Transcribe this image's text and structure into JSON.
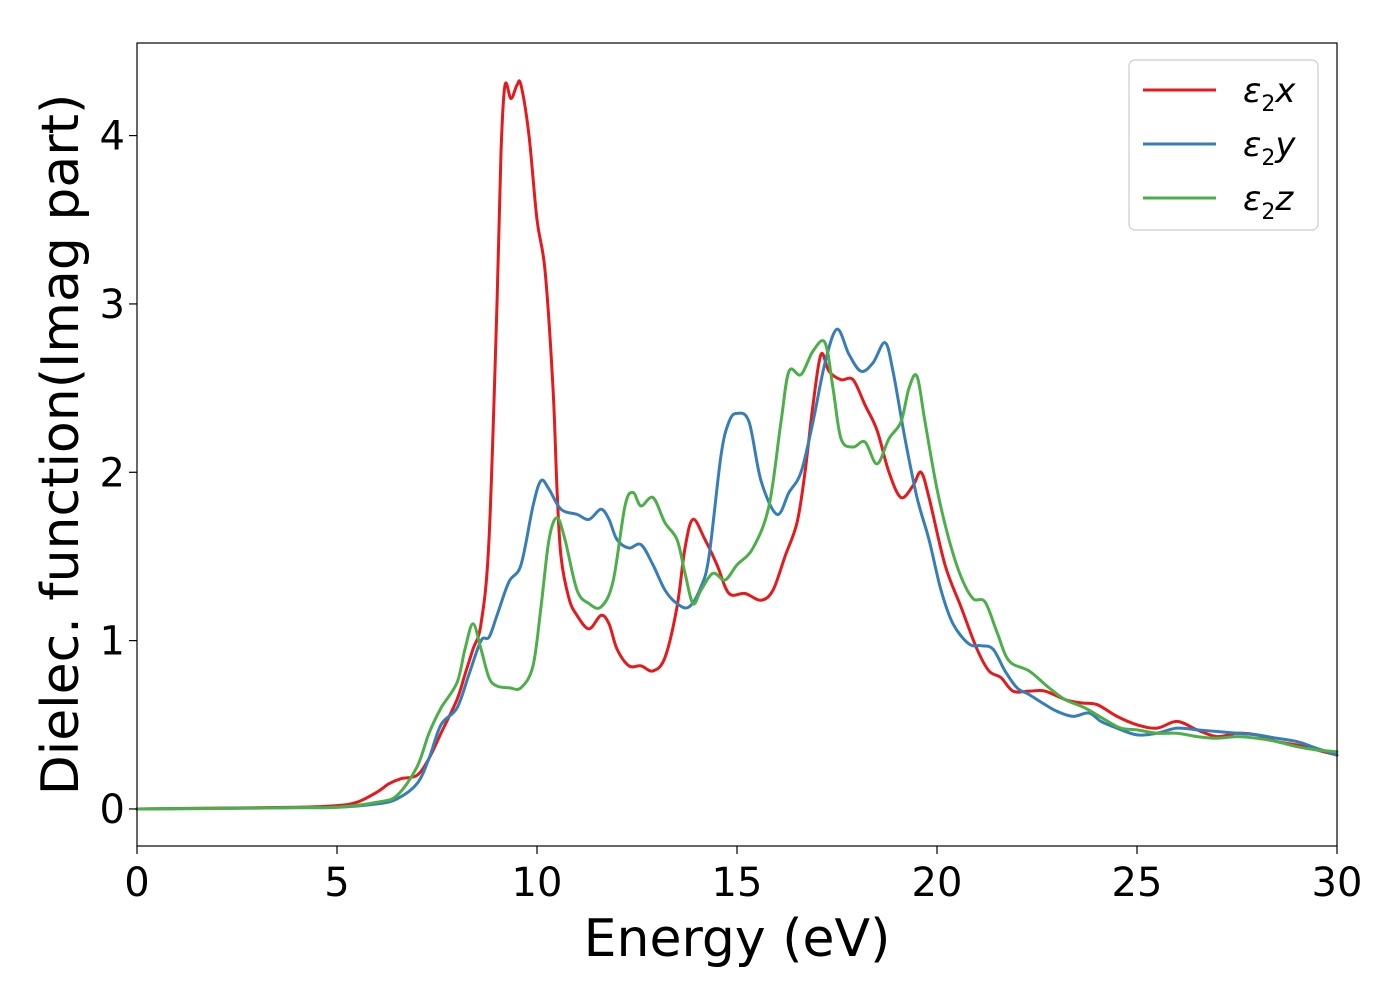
{
  "chart_data": {
    "type": "line",
    "xlabel": "Energy (eV)",
    "ylabel": "Dielec. function(Imag part)",
    "xlim": [
      0,
      30
    ],
    "ylim": [
      -0.22,
      4.55
    ],
    "xticks": [
      "0",
      "5",
      "10",
      "15",
      "20",
      "25",
      "30"
    ],
    "yticks": [
      "0",
      "1",
      "2",
      "3",
      "4"
    ],
    "grid": false,
    "legend_position": "top-right",
    "series": [
      {
        "name": "ε2x",
        "legend_base": "ε",
        "legend_sub": "2",
        "legend_var": "x",
        "color": "#e41a1c",
        "points": [
          [
            0,
            0
          ],
          [
            2,
            0.005
          ],
          [
            4,
            0.01
          ],
          [
            5,
            0.02
          ],
          [
            5.5,
            0.04
          ],
          [
            6,
            0.1
          ],
          [
            6.3,
            0.15
          ],
          [
            6.6,
            0.18
          ],
          [
            7,
            0.2
          ],
          [
            7.3,
            0.3
          ],
          [
            7.6,
            0.45
          ],
          [
            8,
            0.65
          ],
          [
            8.2,
            0.8
          ],
          [
            8.4,
            0.95
          ],
          [
            8.6,
            1.1
          ],
          [
            8.8,
            1.6
          ],
          [
            9,
            3.0
          ],
          [
            9.1,
            3.9
          ],
          [
            9.2,
            4.3
          ],
          [
            9.35,
            4.22
          ],
          [
            9.5,
            4.3
          ],
          [
            9.6,
            4.3
          ],
          [
            9.8,
            4.0
          ],
          [
            10,
            3.5
          ],
          [
            10.2,
            3.2
          ],
          [
            10.4,
            2.5
          ],
          [
            10.5,
            1.9
          ],
          [
            10.6,
            1.5
          ],
          [
            10.8,
            1.25
          ],
          [
            11,
            1.15
          ],
          [
            11.3,
            1.07
          ],
          [
            11.6,
            1.15
          ],
          [
            11.8,
            1.1
          ],
          [
            12,
            0.95
          ],
          [
            12.3,
            0.85
          ],
          [
            12.6,
            0.85
          ],
          [
            12.9,
            0.82
          ],
          [
            13.2,
            0.9
          ],
          [
            13.5,
            1.2
          ],
          [
            13.7,
            1.55
          ],
          [
            13.9,
            1.72
          ],
          [
            14.2,
            1.6
          ],
          [
            14.5,
            1.45
          ],
          [
            14.8,
            1.28
          ],
          [
            15.2,
            1.28
          ],
          [
            15.6,
            1.24
          ],
          [
            15.9,
            1.3
          ],
          [
            16.2,
            1.5
          ],
          [
            16.5,
            1.7
          ],
          [
            16.7,
            2.0
          ],
          [
            16.9,
            2.4
          ],
          [
            17.1,
            2.7
          ],
          [
            17.3,
            2.6
          ],
          [
            17.6,
            2.55
          ],
          [
            17.9,
            2.55
          ],
          [
            18.2,
            2.4
          ],
          [
            18.5,
            2.25
          ],
          [
            18.8,
            2.0
          ],
          [
            19.1,
            1.85
          ],
          [
            19.4,
            1.92
          ],
          [
            19.6,
            2.0
          ],
          [
            19.8,
            1.85
          ],
          [
            20.2,
            1.45
          ],
          [
            20.6,
            1.2
          ],
          [
            21,
            0.95
          ],
          [
            21.3,
            0.82
          ],
          [
            21.6,
            0.78
          ],
          [
            21.9,
            0.7
          ],
          [
            22.3,
            0.7
          ],
          [
            22.7,
            0.7
          ],
          [
            23.2,
            0.65
          ],
          [
            23.6,
            0.63
          ],
          [
            24,
            0.62
          ],
          [
            24.5,
            0.55
          ],
          [
            25,
            0.5
          ],
          [
            25.5,
            0.48
          ],
          [
            26,
            0.52
          ],
          [
            26.5,
            0.47
          ],
          [
            27,
            0.43
          ],
          [
            27.5,
            0.45
          ],
          [
            28,
            0.44
          ],
          [
            28.5,
            0.4
          ],
          [
            29,
            0.38
          ],
          [
            29.5,
            0.35
          ],
          [
            30,
            0.32
          ]
        ]
      },
      {
        "name": "ε2y",
        "legend_base": "ε",
        "legend_sub": "2",
        "legend_var": "y",
        "color": "#377eb8",
        "points": [
          [
            0,
            0
          ],
          [
            2,
            0.003
          ],
          [
            4,
            0.008
          ],
          [
            5,
            0.01
          ],
          [
            6,
            0.03
          ],
          [
            6.5,
            0.06
          ],
          [
            7,
            0.15
          ],
          [
            7.3,
            0.3
          ],
          [
            7.6,
            0.5
          ],
          [
            8,
            0.6
          ],
          [
            8.3,
            0.8
          ],
          [
            8.6,
            1.0
          ],
          [
            8.8,
            1.02
          ],
          [
            9,
            1.15
          ],
          [
            9.3,
            1.35
          ],
          [
            9.6,
            1.45
          ],
          [
            9.9,
            1.8
          ],
          [
            10.1,
            1.95
          ],
          [
            10.3,
            1.9
          ],
          [
            10.6,
            1.78
          ],
          [
            11,
            1.75
          ],
          [
            11.3,
            1.72
          ],
          [
            11.6,
            1.78
          ],
          [
            11.8,
            1.72
          ],
          [
            12,
            1.6
          ],
          [
            12.3,
            1.55
          ],
          [
            12.6,
            1.57
          ],
          [
            12.9,
            1.45
          ],
          [
            13.2,
            1.3
          ],
          [
            13.5,
            1.22
          ],
          [
            13.8,
            1.2
          ],
          [
            14.1,
            1.32
          ],
          [
            14.3,
            1.5
          ],
          [
            14.6,
            2.1
          ],
          [
            14.8,
            2.3
          ],
          [
            15,
            2.35
          ],
          [
            15.3,
            2.3
          ],
          [
            15.6,
            1.95
          ],
          [
            16,
            1.75
          ],
          [
            16.3,
            1.88
          ],
          [
            16.6,
            2.0
          ],
          [
            16.9,
            2.3
          ],
          [
            17.2,
            2.65
          ],
          [
            17.5,
            2.85
          ],
          [
            17.8,
            2.7
          ],
          [
            18.1,
            2.6
          ],
          [
            18.4,
            2.65
          ],
          [
            18.7,
            2.77
          ],
          [
            18.9,
            2.6
          ],
          [
            19.2,
            2.2
          ],
          [
            19.5,
            1.85
          ],
          [
            19.8,
            1.6
          ],
          [
            20.1,
            1.3
          ],
          [
            20.4,
            1.1
          ],
          [
            20.8,
            0.98
          ],
          [
            21.1,
            0.97
          ],
          [
            21.4,
            0.95
          ],
          [
            21.7,
            0.82
          ],
          [
            22,
            0.72
          ],
          [
            22.3,
            0.68
          ],
          [
            22.7,
            0.62
          ],
          [
            23,
            0.58
          ],
          [
            23.4,
            0.55
          ],
          [
            23.8,
            0.57
          ],
          [
            24.1,
            0.52
          ],
          [
            24.5,
            0.48
          ],
          [
            25,
            0.44
          ],
          [
            25.5,
            0.45
          ],
          [
            26,
            0.48
          ],
          [
            26.5,
            0.47
          ],
          [
            27,
            0.46
          ],
          [
            27.5,
            0.45
          ],
          [
            28,
            0.44
          ],
          [
            28.5,
            0.42
          ],
          [
            29,
            0.4
          ],
          [
            29.5,
            0.36
          ],
          [
            30,
            0.32
          ]
        ]
      },
      {
        "name": "ε2z",
        "legend_base": "ε",
        "legend_sub": "2",
        "legend_var": "z",
        "color": "#4daf4a",
        "points": [
          [
            0,
            0
          ],
          [
            2,
            0.003
          ],
          [
            4,
            0.008
          ],
          [
            5,
            0.01
          ],
          [
            6,
            0.04
          ],
          [
            6.5,
            0.08
          ],
          [
            7,
            0.25
          ],
          [
            7.3,
            0.45
          ],
          [
            7.6,
            0.6
          ],
          [
            8,
            0.75
          ],
          [
            8.2,
            0.95
          ],
          [
            8.4,
            1.1
          ],
          [
            8.6,
            0.95
          ],
          [
            8.8,
            0.78
          ],
          [
            9,
            0.73
          ],
          [
            9.3,
            0.72
          ],
          [
            9.6,
            0.72
          ],
          [
            9.9,
            0.85
          ],
          [
            10.1,
            1.2
          ],
          [
            10.3,
            1.6
          ],
          [
            10.5,
            1.73
          ],
          [
            10.7,
            1.6
          ],
          [
            11,
            1.3
          ],
          [
            11.3,
            1.22
          ],
          [
            11.6,
            1.2
          ],
          [
            11.9,
            1.35
          ],
          [
            12.2,
            1.8
          ],
          [
            12.4,
            1.88
          ],
          [
            12.6,
            1.8
          ],
          [
            12.9,
            1.85
          ],
          [
            13.2,
            1.7
          ],
          [
            13.5,
            1.6
          ],
          [
            13.7,
            1.4
          ],
          [
            13.9,
            1.22
          ],
          [
            14.1,
            1.3
          ],
          [
            14.4,
            1.4
          ],
          [
            14.7,
            1.36
          ],
          [
            15,
            1.45
          ],
          [
            15.4,
            1.55
          ],
          [
            15.8,
            1.8
          ],
          [
            16.1,
            2.3
          ],
          [
            16.3,
            2.6
          ],
          [
            16.6,
            2.58
          ],
          [
            16.9,
            2.72
          ],
          [
            17.2,
            2.77
          ],
          [
            17.4,
            2.5
          ],
          [
            17.6,
            2.2
          ],
          [
            17.9,
            2.15
          ],
          [
            18.2,
            2.18
          ],
          [
            18.5,
            2.05
          ],
          [
            18.8,
            2.2
          ],
          [
            19.1,
            2.3
          ],
          [
            19.3,
            2.5
          ],
          [
            19.5,
            2.57
          ],
          [
            19.7,
            2.3
          ],
          [
            20,
            1.9
          ],
          [
            20.3,
            1.6
          ],
          [
            20.6,
            1.38
          ],
          [
            20.9,
            1.25
          ],
          [
            21.2,
            1.23
          ],
          [
            21.5,
            1.05
          ],
          [
            21.8,
            0.88
          ],
          [
            22.3,
            0.82
          ],
          [
            22.8,
            0.72
          ],
          [
            23.2,
            0.65
          ],
          [
            23.7,
            0.6
          ],
          [
            24.2,
            0.53
          ],
          [
            24.6,
            0.48
          ],
          [
            25,
            0.47
          ],
          [
            25.5,
            0.45
          ],
          [
            26,
            0.45
          ],
          [
            26.5,
            0.43
          ],
          [
            27,
            0.42
          ],
          [
            27.5,
            0.43
          ],
          [
            28,
            0.42
          ],
          [
            28.5,
            0.4
          ],
          [
            29,
            0.37
          ],
          [
            29.5,
            0.35
          ],
          [
            30,
            0.34
          ]
        ]
      }
    ]
  }
}
